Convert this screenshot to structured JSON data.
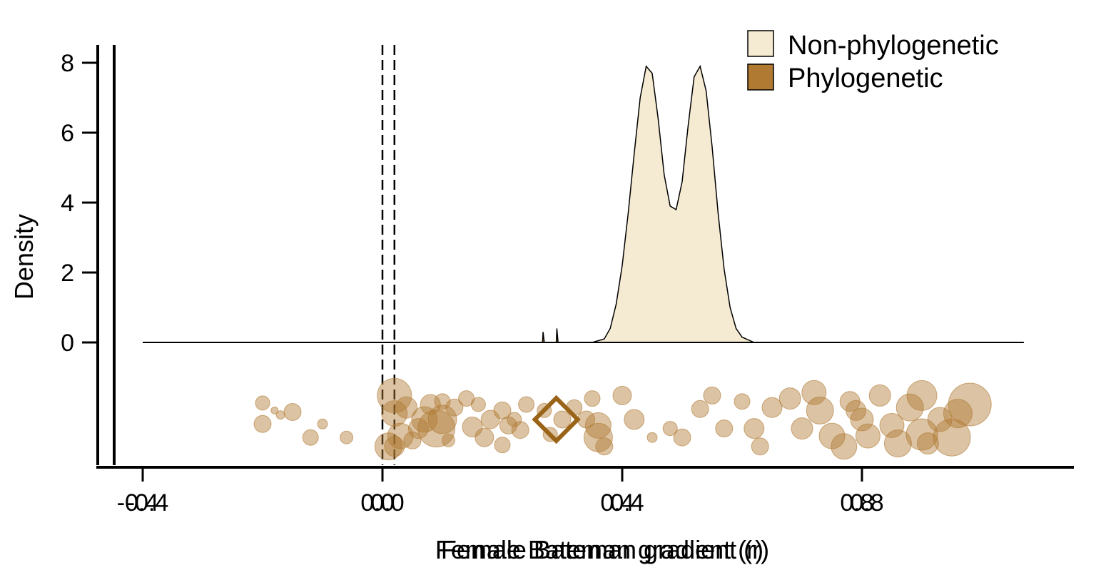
{
  "chart_data": {
    "type": "area",
    "xlabel": "Female Bateman gradient (r)",
    "xlabel_overlay": "Female Bateman gradient (r)",
    "ylabel": "Density",
    "x_ticks": [
      {
        "value": -0.4,
        "labels": [
          "-0.4",
          "-0.4"
        ]
      },
      {
        "value": 0.0,
        "labels": [
          "0.0",
          "0.0"
        ]
      },
      {
        "value": 0.4,
        "labels": [
          "0.4",
          "0.4"
        ]
      },
      {
        "value": 0.8,
        "labels": [
          "0.8",
          "0.8"
        ]
      }
    ],
    "y_ticks": [
      0,
      2,
      4,
      6,
      8
    ],
    "xlim": [
      -0.45,
      1.09
    ],
    "ylim": [
      0,
      8.5
    ],
    "legend": {
      "position": "top-right",
      "entries": [
        {
          "name": "Non-phylogenetic",
          "color": "#f5ead2"
        },
        {
          "name": "Phylogenetic",
          "color": "#b07a33"
        }
      ]
    },
    "reference_lines": [
      {
        "x": 0.0,
        "style": "dashed"
      },
      {
        "x": 0.02,
        "style": "dashed"
      }
    ],
    "series": [
      {
        "name": "Non-phylogenetic",
        "kind": "density",
        "fill": "#f5ead2",
        "points": [
          [
            -0.4,
            0
          ],
          [
            0.35,
            0
          ],
          [
            0.37,
            0.1
          ],
          [
            0.38,
            0.4
          ],
          [
            0.39,
            1.1
          ],
          [
            0.4,
            2.2
          ],
          [
            0.41,
            3.7
          ],
          [
            0.42,
            5.4
          ],
          [
            0.43,
            7.0
          ],
          [
            0.44,
            7.9
          ],
          [
            0.45,
            7.7
          ],
          [
            0.46,
            6.4
          ],
          [
            0.47,
            4.8
          ],
          [
            0.48,
            3.9
          ],
          [
            0.49,
            3.8
          ],
          [
            0.5,
            4.6
          ],
          [
            0.51,
            6.2
          ],
          [
            0.52,
            7.6
          ],
          [
            0.53,
            7.9
          ],
          [
            0.54,
            7.2
          ],
          [
            0.55,
            5.6
          ],
          [
            0.56,
            3.7
          ],
          [
            0.57,
            2.1
          ],
          [
            0.58,
            1.0
          ],
          [
            0.59,
            0.4
          ],
          [
            0.6,
            0.15
          ],
          [
            0.62,
            0
          ],
          [
            1.07,
            0
          ]
        ]
      },
      {
        "name": "Phylogenetic",
        "kind": "density",
        "fill": "#b07a33",
        "points": [
          [
            0.267,
            0
          ],
          [
            0.268,
            0.3
          ],
          [
            0.27,
            0
          ],
          [
            0.29,
            0
          ],
          [
            0.291,
            0.4
          ],
          [
            0.293,
            0
          ]
        ]
      }
    ],
    "effect_sizes": {
      "color": "#b07a33",
      "points": [
        {
          "x": -0.2,
          "lane": 0.55,
          "size": 10
        },
        {
          "x": -0.18,
          "lane": 0.3,
          "size": 5
        },
        {
          "x": -0.15,
          "lane": 0.25,
          "size": 12
        },
        {
          "x": -0.2,
          "lane": -0.15,
          "size": 12
        },
        {
          "x": -0.1,
          "lane": -0.15,
          "size": 7
        },
        {
          "x": -0.12,
          "lane": -0.6,
          "size": 11
        },
        {
          "x": -0.06,
          "lane": -0.6,
          "size": 9
        },
        {
          "x": -0.17,
          "lane": 0.15,
          "size": 6
        },
        {
          "x": 0.02,
          "lane": 0.8,
          "size": 24
        },
        {
          "x": 0.02,
          "lane": 0.2,
          "size": 18
        },
        {
          "x": 0.04,
          "lane": 0.4,
          "size": 15
        },
        {
          "x": 0.03,
          "lane": -0.55,
          "size": 18
        },
        {
          "x": 0.02,
          "lane": -0.9,
          "size": 14
        },
        {
          "x": 0.01,
          "lane": -0.9,
          "size": 19
        },
        {
          "x": 0.05,
          "lane": -0.7,
          "size": 12
        },
        {
          "x": 0.08,
          "lane": 0.5,
          "size": 14
        },
        {
          "x": 0.07,
          "lane": 0.0,
          "size": 18
        },
        {
          "x": 0.09,
          "lane": -0.3,
          "size": 26
        },
        {
          "x": 0.1,
          "lane": 0.6,
          "size": 11
        },
        {
          "x": 0.12,
          "lane": 0.4,
          "size": 12
        },
        {
          "x": 0.11,
          "lane": -0.7,
          "size": 9
        },
        {
          "x": 0.14,
          "lane": 0.7,
          "size": 11
        },
        {
          "x": 0.16,
          "lane": 0.5,
          "size": 10
        },
        {
          "x": 0.15,
          "lane": -0.25,
          "size": 14
        },
        {
          "x": 0.18,
          "lane": 0.0,
          "size": 13
        },
        {
          "x": 0.17,
          "lane": -0.6,
          "size": 13
        },
        {
          "x": 0.2,
          "lane": 0.3,
          "size": 12
        },
        {
          "x": 0.21,
          "lane": -0.2,
          "size": 12
        },
        {
          "x": 0.2,
          "lane": -0.85,
          "size": 11
        },
        {
          "x": 0.24,
          "lane": 0.5,
          "size": 11
        },
        {
          "x": 0.23,
          "lane": -0.35,
          "size": 12
        },
        {
          "x": 0.27,
          "lane": 0.3,
          "size": 10
        },
        {
          "x": 0.28,
          "lane": -0.5,
          "size": 10
        },
        {
          "x": 0.32,
          "lane": 0.4,
          "size": 11
        },
        {
          "x": 0.34,
          "lane": 0.0,
          "size": 12
        },
        {
          "x": 0.36,
          "lane": -0.2,
          "size": 18
        },
        {
          "x": 0.36,
          "lane": -0.6,
          "size": 20
        },
        {
          "x": 0.35,
          "lane": 0.7,
          "size": 11
        },
        {
          "x": 0.4,
          "lane": 0.8,
          "size": 13
        },
        {
          "x": 0.37,
          "lane": -0.9,
          "size": 12
        },
        {
          "x": 0.42,
          "lane": 0.0,
          "size": 14
        },
        {
          "x": 0.45,
          "lane": -0.6,
          "size": 7
        },
        {
          "x": 0.48,
          "lane": -0.3,
          "size": 10
        },
        {
          "x": 0.5,
          "lane": -0.6,
          "size": 12
        },
        {
          "x": 0.53,
          "lane": 0.35,
          "size": 12
        },
        {
          "x": 0.55,
          "lane": 0.8,
          "size": 12
        },
        {
          "x": 0.57,
          "lane": -0.3,
          "size": 12
        },
        {
          "x": 0.6,
          "lane": 0.6,
          "size": 11
        },
        {
          "x": 0.62,
          "lane": -0.3,
          "size": 14
        },
        {
          "x": 0.63,
          "lane": -0.9,
          "size": 12
        },
        {
          "x": 0.65,
          "lane": 0.4,
          "size": 14
        },
        {
          "x": 0.68,
          "lane": 0.7,
          "size": 15
        },
        {
          "x": 0.7,
          "lane": -0.3,
          "size": 15
        },
        {
          "x": 0.72,
          "lane": 0.9,
          "size": 17
        },
        {
          "x": 0.73,
          "lane": 0.3,
          "size": 19
        },
        {
          "x": 0.75,
          "lane": -0.55,
          "size": 18
        },
        {
          "x": 0.77,
          "lane": -0.9,
          "size": 18
        },
        {
          "x": 0.78,
          "lane": 0.6,
          "size": 14
        },
        {
          "x": 0.8,
          "lane": 0.0,
          "size": 16
        },
        {
          "x": 0.81,
          "lane": -0.55,
          "size": 17
        },
        {
          "x": 0.83,
          "lane": 0.8,
          "size": 15
        },
        {
          "x": 0.85,
          "lane": -0.2,
          "size": 17
        },
        {
          "x": 0.88,
          "lane": 0.4,
          "size": 19
        },
        {
          "x": 0.9,
          "lane": 0.8,
          "size": 21
        },
        {
          "x": 0.9,
          "lane": -0.5,
          "size": 22
        },
        {
          "x": 0.91,
          "lane": -0.8,
          "size": 15
        },
        {
          "x": 0.93,
          "lane": 0.0,
          "size": 17
        },
        {
          "x": 0.95,
          "lane": -0.6,
          "size": 26
        },
        {
          "x": 0.98,
          "lane": 0.5,
          "size": 30
        },
        {
          "x": 0.96,
          "lane": 0.2,
          "size": 20
        },
        {
          "x": 0.86,
          "lane": -0.8,
          "size": 19
        },
        {
          "x": 0.79,
          "lane": 0.3,
          "size": 14
        },
        {
          "x": 0.1,
          "lane": 0.0,
          "size": 20
        },
        {
          "x": 0.06,
          "lane": -0.3,
          "size": 14
        },
        {
          "x": 0.22,
          "lane": 0.0,
          "size": 10
        },
        {
          "x": 0.3,
          "lane": 0.0,
          "size": 12
        }
      ]
    },
    "summary_marker": {
      "x": 0.29,
      "shape": "diamond",
      "color": "#9a6418"
    }
  }
}
